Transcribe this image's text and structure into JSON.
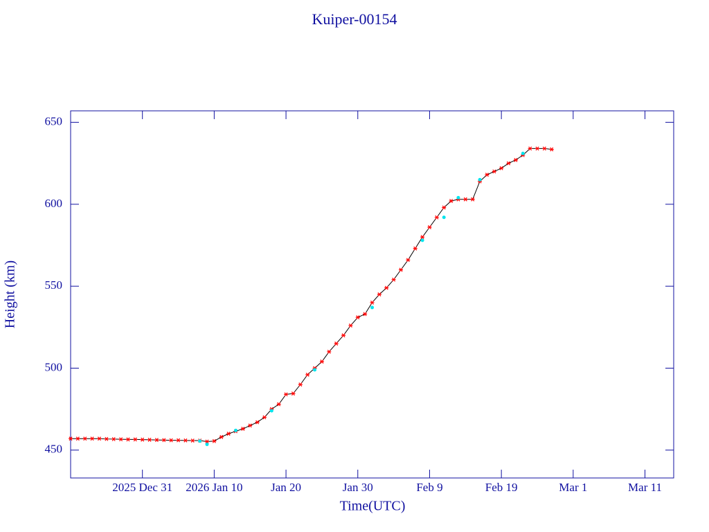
{
  "chart_data": {
    "type": "scatter",
    "title": "Kuiper-00154",
    "x_label": "Time(UTC)",
    "y_label": "Height (km)",
    "xlim": [
      "2025-12-21",
      "2026-03-15"
    ],
    "xticks": [
      {
        "value": "2025-12-31",
        "label": "2025 Dec 31"
      },
      {
        "value": "2026-01-10",
        "label": "2026 Jan 10"
      },
      {
        "value": "2026-01-20",
        "label": "Jan 20"
      },
      {
        "value": "2026-01-30",
        "label": "Jan 30"
      },
      {
        "value": "2026-02-09",
        "label": "Feb  9"
      },
      {
        "value": "2026-02-19",
        "label": "Feb 19"
      },
      {
        "value": "2026-03-01",
        "label": "Mar  1"
      },
      {
        "value": "2026-03-11",
        "label": "Mar 11"
      }
    ],
    "ylim": [
      433,
      657
    ],
    "yticks": [
      450,
      500,
      550,
      600,
      650
    ],
    "line_color": "#000000",
    "series": [
      {
        "color": "#ff0000",
        "marker": "asterisk",
        "x": [
          "2025-12-21",
          "2025-12-22",
          "2025-12-23",
          "2025-12-24",
          "2025-12-25",
          "2025-12-26",
          "2025-12-27",
          "2025-12-28",
          "2025-12-29",
          "2025-12-30",
          "2025-12-31",
          "2026-01-01",
          "2026-01-02",
          "2026-01-03",
          "2026-01-04",
          "2026-01-05",
          "2026-01-06",
          "2026-01-07",
          "2026-01-08",
          "2026-01-09",
          "2026-01-10",
          "2026-01-11",
          "2026-01-12",
          "2026-01-13",
          "2026-01-14",
          "2026-01-15",
          "2026-01-16",
          "2026-01-17",
          "2026-01-18",
          "2026-01-19",
          "2026-01-20",
          "2026-01-21",
          "2026-01-22",
          "2026-01-23",
          "2026-01-24",
          "2026-01-25",
          "2026-01-26",
          "2026-01-27",
          "2026-01-28",
          "2026-01-29",
          "2026-01-30",
          "2026-01-31",
          "2026-02-01",
          "2026-02-02",
          "2026-02-03",
          "2026-02-04",
          "2026-02-05",
          "2026-02-06",
          "2026-02-07",
          "2026-02-08",
          "2026-02-09",
          "2026-02-10",
          "2026-02-11",
          "2026-02-12",
          "2026-02-13",
          "2026-02-14",
          "2026-02-15",
          "2026-02-16",
          "2026-02-17",
          "2026-02-18",
          "2026-02-19",
          "2026-02-20",
          "2026-02-21",
          "2026-02-22",
          "2026-02-23",
          "2026-02-24",
          "2026-02-25",
          "2026-02-26"
        ],
        "values": [
          457,
          457,
          457,
          457,
          457,
          456.8,
          456.7,
          456.6,
          456.5,
          456.5,
          456.4,
          456.3,
          456.2,
          456.1,
          456,
          456,
          455.9,
          455.8,
          455.8,
          455.2,
          455.5,
          458,
          460,
          461.5,
          463,
          465,
          467,
          470,
          475,
          478,
          484,
          484.5,
          490,
          496,
          500,
          504,
          510,
          515,
          520,
          526,
          531,
          533,
          540,
          545,
          549,
          554,
          560,
          566,
          573,
          580,
          586,
          592,
          598,
          602,
          603,
          603,
          603,
          614,
          618,
          620,
          622,
          625,
          627,
          630,
          634,
          634,
          634,
          633.5
        ]
      },
      {
        "color": "#00e5ee",
        "marker": "dot",
        "x": [
          "2026-01-08",
          "2026-01-09",
          "2026-01-13",
          "2026-01-18",
          "2026-01-24",
          "2026-02-01",
          "2026-02-08",
          "2026-02-11",
          "2026-02-13",
          "2026-02-16",
          "2026-02-22"
        ],
        "values": [
          455.5,
          453.5,
          462,
          474,
          499,
          537,
          578,
          592,
          604,
          615,
          631
        ]
      }
    ]
  }
}
